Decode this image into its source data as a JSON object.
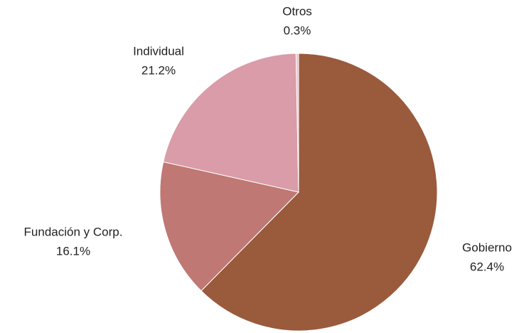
{
  "chart_data": {
    "type": "pie",
    "categories": [
      "Gobierno",
      "Fundación y Corp.",
      "Individual",
      "Otros"
    ],
    "values": [
      62.4,
      16.1,
      21.2,
      0.3
    ],
    "value_labels": [
      "62.4%",
      "16.1%",
      "21.2%",
      "0.3%"
    ],
    "colors": [
      "#9a5a3c",
      "#bf7874",
      "#d99ca8",
      "#efbfcf"
    ]
  }
}
